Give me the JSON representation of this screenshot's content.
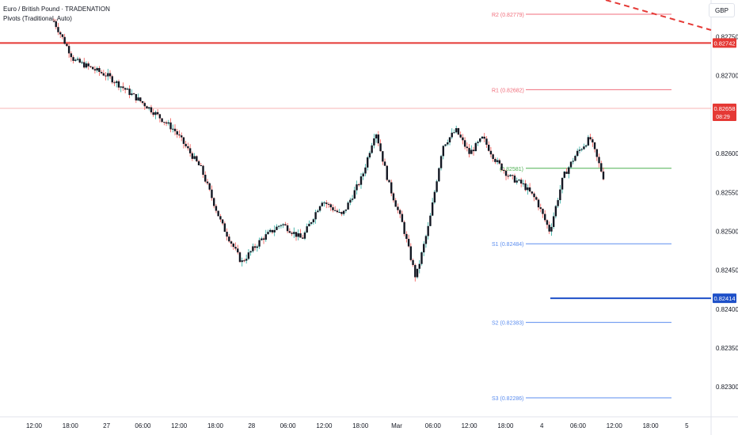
{
  "legend": {
    "symbol": "Euro / British Pound",
    "source_suffix": "· TRADENATION",
    "indicator": "Pivots (Traditional, Auto)"
  },
  "currency_button": "GBP",
  "colors": {
    "up": "#26a69a",
    "down": "#ef5350",
    "candle_body": "#131722",
    "red_line": "#e53935",
    "blue_line": "#1e50c8",
    "pivot_red": "#f06e7b",
    "pivot_green": "#4caf50",
    "pivot_blue": "#5b8def"
  },
  "chart_data": {
    "type": "candlestick",
    "x_ticks": [
      "12:00",
      "18:00",
      "27",
      "06:00",
      "12:00",
      "18:00",
      "28",
      "06:00",
      "12:00",
      "18:00",
      "Mar",
      "06:00",
      "12:00",
      "18:00",
      "4",
      "06:00",
      "12:00",
      "18:00",
      "5"
    ],
    "y_ticks": [
      "0.82750",
      "0.82700",
      "0.82600",
      "0.82550",
      "0.82500",
      "0.82450",
      "0.82400",
      "0.82350",
      "0.82300"
    ],
    "y_range": [
      0.8226,
      0.8279
    ],
    "pivots": [
      {
        "label": "R2 (0.82779)",
        "value": 0.82779,
        "color": "red"
      },
      {
        "label": "R1 (0.82682)",
        "value": 0.82682,
        "color": "red"
      },
      {
        "label": "(0.82581)",
        "value": 0.82581,
        "color": "green"
      },
      {
        "label": "S1 (0.82484)",
        "value": 0.82484,
        "color": "blue"
      },
      {
        "label": "S2 (0.82383)",
        "value": 0.82383,
        "color": "blue"
      },
      {
        "label": "S3 (0.82286)",
        "value": 0.82286,
        "color": "blue"
      }
    ],
    "horizontal_levels": [
      {
        "label": "0.82742",
        "value": 0.82742,
        "color": "red"
      },
      {
        "label": "0.82414",
        "value": 0.82414,
        "color": "blue"
      }
    ],
    "current_price": {
      "label": "0.82658",
      "value": 0.82658,
      "countdown": "08:29"
    },
    "series_points": [
      [
        0,
        0.8277
      ],
      [
        3,
        0.8272
      ],
      [
        8,
        0.827
      ],
      [
        14,
        0.8266
      ],
      [
        18,
        0.8263
      ],
      [
        22,
        0.8258
      ],
      [
        25,
        0.8251
      ],
      [
        28,
        0.8246
      ],
      [
        31,
        0.8249
      ],
      [
        34,
        0.8251
      ],
      [
        37,
        0.8249
      ],
      [
        40,
        0.8254
      ],
      [
        43,
        0.8252
      ],
      [
        46,
        0.8257
      ],
      [
        48,
        0.8263
      ],
      [
        50,
        0.8256
      ],
      [
        52,
        0.8251
      ],
      [
        54,
        0.8244
      ],
      [
        56,
        0.8251
      ],
      [
        58,
        0.8261
      ],
      [
        60,
        0.8263
      ],
      [
        62,
        0.826
      ],
      [
        64,
        0.8262
      ],
      [
        66,
        0.8259
      ],
      [
        68,
        0.8257
      ],
      [
        70,
        0.8256
      ],
      [
        72,
        0.8254
      ],
      [
        74,
        0.825
      ],
      [
        76,
        0.8257
      ],
      [
        78,
        0.826
      ],
      [
        80,
        0.8262
      ],
      [
        82,
        0.8257
      ]
    ]
  }
}
